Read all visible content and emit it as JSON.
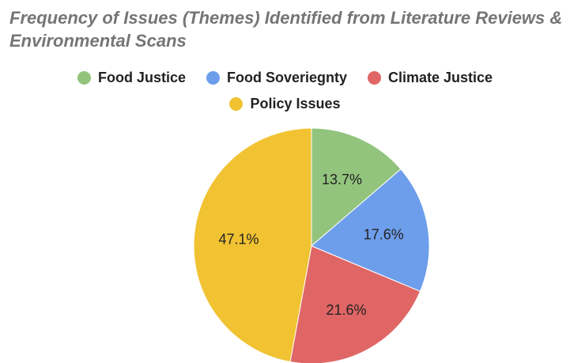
{
  "chart_data": {
    "type": "pie",
    "title": "Frequency of Issues (Themes) Identified from Literature Reviews & Environmental Scans",
    "legend_position": "top",
    "slices": [
      {
        "name": "Food Justice",
        "value": 13.7,
        "label": "13.7%",
        "color": "#93c47d"
      },
      {
        "name": "Food Soveriegnty",
        "value": 17.6,
        "label": "17.6%",
        "color": "#6d9eeb"
      },
      {
        "name": "Climate Justice",
        "value": 21.6,
        "label": "21.6%",
        "color": "#e06666"
      },
      {
        "name": "Policy Issues",
        "value": 47.1,
        "label": "47.1%",
        "color": "#f1c232"
      }
    ]
  }
}
